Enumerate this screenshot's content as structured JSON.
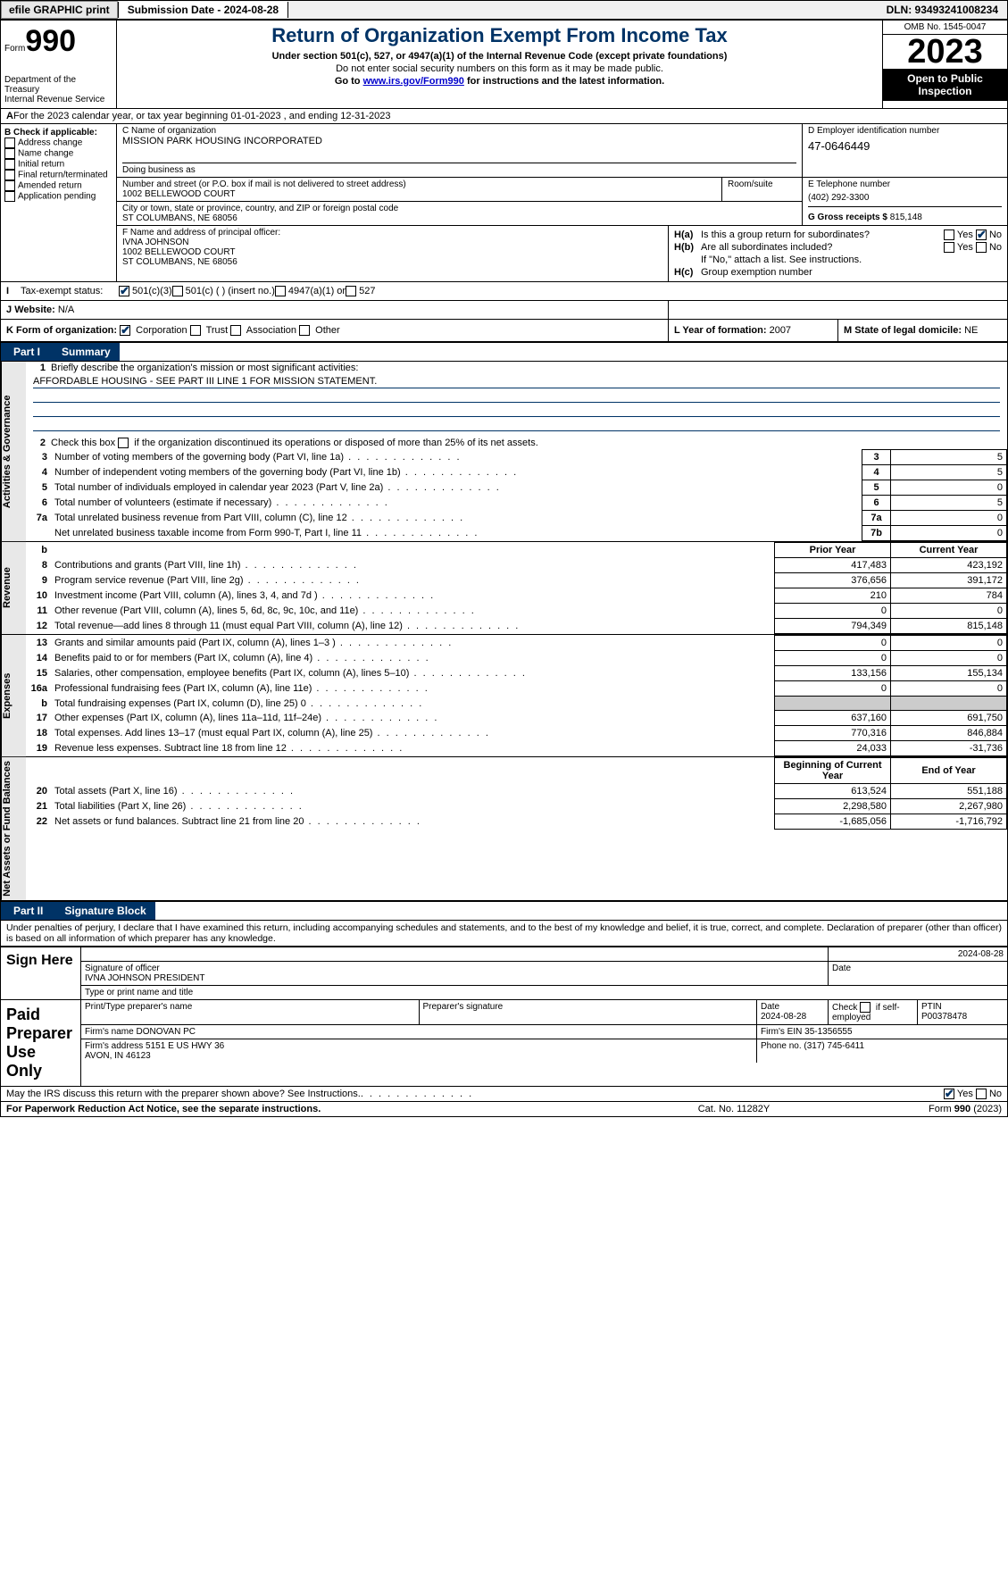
{
  "topbar": {
    "efile": "efile GRAPHIC print",
    "submission": "Submission Date - 2024-08-28",
    "dln": "DLN: 93493241008234"
  },
  "hdr": {
    "form_word": "Form",
    "form_num": "990",
    "dept": "Department of the Treasury\nInternal Revenue Service",
    "title": "Return of Organization Exempt From Income Tax",
    "sub": "Under section 501(c), 527, or 4947(a)(1) of the Internal Revenue Code (except private foundations)",
    "sub2": "Do not enter social security numbers on this form as it may be made public.",
    "sub3_a": "Go to ",
    "sub3_link": "www.irs.gov/Form990",
    "sub3_b": " for instructions and the latest information.",
    "omb": "OMB No. 1545-0047",
    "year": "2023",
    "insp": "Open to Public Inspection"
  },
  "a": {
    "text": "For the 2023 calendar year, or tax year beginning 01-01-2023     , and ending 12-31-2023"
  },
  "b": {
    "label": "B Check if applicable:",
    "items": [
      "Address change",
      "Name change",
      "Initial return",
      "Final return/terminated",
      "Amended return",
      "Application pending"
    ]
  },
  "c": {
    "name_label": "C Name of organization",
    "name": "MISSION PARK HOUSING INCORPORATED",
    "dba_label": "Doing business as",
    "dba": "",
    "street_label": "Number and street (or P.O. box if mail is not delivered to street address)",
    "street": "1002 BELLEWOOD COURT",
    "room_label": "Room/suite",
    "city_label": "City or town, state or province, country, and ZIP or foreign postal code",
    "city": "ST COLUMBANS, NE  68056"
  },
  "d": {
    "label": "D Employer identification number",
    "value": "47-0646449"
  },
  "e": {
    "label": "E Telephone number",
    "value": "(402) 292-3300"
  },
  "g": {
    "label": "G Gross receipts $",
    "value": "815,148"
  },
  "f": {
    "label": "F  Name and address of principal officer:",
    "name": "IVNA JOHNSON",
    "street": "1002 BELLEWOOD COURT",
    "city": "ST COLUMBANS, NE  68056"
  },
  "h": {
    "a_label": "Is this a group return for subordinates?",
    "a_yes": false,
    "a_no": true,
    "b_label": "Are all subordinates included?",
    "b_yes": false,
    "b_no": false,
    "b_note": "If \"No,\" attach a list. See instructions.",
    "c_label": "Group exemption number",
    "c_value": ""
  },
  "i": {
    "label": "Tax-exempt status:",
    "c501c3": true,
    "c501c": "501(c) (  ) (insert no.)",
    "c4947": "4947(a)(1) or",
    "c527": "527"
  },
  "j": {
    "label": "Website:",
    "value": "N/A"
  },
  "k": {
    "label": "K Form of organization:",
    "corp": true,
    "items": [
      "Corporation",
      "Trust",
      "Association",
      "Other"
    ]
  },
  "l": {
    "label": "L Year of formation:",
    "value": "2007"
  },
  "m": {
    "label": "M State of legal domicile:",
    "value": "NE"
  },
  "part1": {
    "num": "Part I",
    "title": "Summary"
  },
  "p1": {
    "l1": "Briefly describe the organization's mission or most significant activities:",
    "l1v": "AFFORDABLE HOUSING - SEE PART III LINE 1 FOR MISSION STATEMENT.",
    "l2": "Check this box      if the organization discontinued its operations or disposed of more than 25% of its net assets.",
    "rows": [
      {
        "n": "3",
        "t": "Number of voting members of the governing body (Part VI, line 1a)",
        "b": "3",
        "v": "5"
      },
      {
        "n": "4",
        "t": "Number of independent voting members of the governing body (Part VI, line 1b)",
        "b": "4",
        "v": "5"
      },
      {
        "n": "5",
        "t": "Total number of individuals employed in calendar year 2023 (Part V, line 2a)",
        "b": "5",
        "v": "0"
      },
      {
        "n": "6",
        "t": "Total number of volunteers (estimate if necessary)",
        "b": "6",
        "v": "5"
      },
      {
        "n": "7a",
        "t": "Total unrelated business revenue from Part VIII, column (C), line 12",
        "b": "7a",
        "v": "0"
      },
      {
        "n": "",
        "t": "Net unrelated business taxable income from Form 990-T, Part I, line 11",
        "b": "7b",
        "v": "0"
      }
    ]
  },
  "revexp": {
    "hdr_prior": "Prior Year",
    "hdr_curr": "Current Year",
    "rev": [
      {
        "n": "8",
        "t": "Contributions and grants (Part VIII, line 1h)",
        "p": "417,483",
        "c": "423,192"
      },
      {
        "n": "9",
        "t": "Program service revenue (Part VIII, line 2g)",
        "p": "376,656",
        "c": "391,172"
      },
      {
        "n": "10",
        "t": "Investment income (Part VIII, column (A), lines 3, 4, and 7d )",
        "p": "210",
        "c": "784"
      },
      {
        "n": "11",
        "t": "Other revenue (Part VIII, column (A), lines 5, 6d, 8c, 9c, 10c, and 11e)",
        "p": "0",
        "c": "0"
      },
      {
        "n": "12",
        "t": "Total revenue—add lines 8 through 11 (must equal Part VIII, column (A), line 12)",
        "p": "794,349",
        "c": "815,148"
      }
    ],
    "exp": [
      {
        "n": "13",
        "t": "Grants and similar amounts paid (Part IX, column (A), lines 1–3 )",
        "p": "0",
        "c": "0"
      },
      {
        "n": "14",
        "t": "Benefits paid to or for members (Part IX, column (A), line 4)",
        "p": "0",
        "c": "0"
      },
      {
        "n": "15",
        "t": "Salaries, other compensation, employee benefits (Part IX, column (A), lines 5–10)",
        "p": "133,156",
        "c": "155,134"
      },
      {
        "n": "16a",
        "t": "Professional fundraising fees (Part IX, column (A), line 11e)",
        "p": "0",
        "c": "0"
      },
      {
        "n": "b",
        "t": "Total fundraising expenses (Part IX, column (D), line 25) 0",
        "p": "",
        "c": "",
        "shade": true
      },
      {
        "n": "17",
        "t": "Other expenses (Part IX, column (A), lines 11a–11d, 11f–24e)",
        "p": "637,160",
        "c": "691,750"
      },
      {
        "n": "18",
        "t": "Total expenses. Add lines 13–17 (must equal Part IX, column (A), line 25)",
        "p": "770,316",
        "c": "846,884"
      },
      {
        "n": "19",
        "t": "Revenue less expenses. Subtract line 18 from line 12",
        "p": "24,033",
        "c": "-31,736"
      }
    ],
    "hdr_beg": "Beginning of Current Year",
    "hdr_end": "End of Year",
    "net": [
      {
        "n": "20",
        "t": "Total assets (Part X, line 16)",
        "p": "613,524",
        "c": "551,188"
      },
      {
        "n": "21",
        "t": "Total liabilities (Part X, line 26)",
        "p": "2,298,580",
        "c": "2,267,980"
      },
      {
        "n": "22",
        "t": "Net assets or fund balances. Subtract line 21 from line 20",
        "p": "-1,685,056",
        "c": "-1,716,792"
      }
    ]
  },
  "sides": {
    "gov": "Activities & Governance",
    "rev": "Revenue",
    "exp": "Expenses",
    "net": "Net Assets or Fund Balances"
  },
  "part2": {
    "num": "Part II",
    "title": "Signature Block"
  },
  "p2txt": "Under penalties of perjury, I declare that I have examined this return, including accompanying schedules and statements, and to the best of my knowledge and belief, it is true, correct, and complete. Declaration of preparer (other than officer) is based on all information of which preparer has any knowledge.",
  "sign": {
    "here": "Sign Here",
    "sig_label": "Signature of officer",
    "date_label": "Date",
    "date": "2024-08-28",
    "name_label": "Type or print name and title",
    "name": "IVNA JOHNSON  PRESIDENT"
  },
  "prep": {
    "label": "Paid Preparer Use Only",
    "h1": "Print/Type preparer's name",
    "h2": "Preparer's signature",
    "h3": "Date",
    "h3v": "2024-08-28",
    "h4": "Check       if self-employed",
    "h5": "PTIN",
    "h5v": "P00378478",
    "firm_label": "Firm's name",
    "firm": "DONOVAN PC",
    "ein_label": "Firm's EIN",
    "ein": "35-1356555",
    "addr_label": "Firm's address",
    "addr1": "5151 E US HWY 36",
    "addr2": "AVON, IN  46123",
    "phone_label": "Phone no.",
    "phone": "(317) 745-6411"
  },
  "discuss": {
    "text": "May the IRS discuss this return with the preparer shown above? See Instructions.",
    "yes": true,
    "no": false
  },
  "foot": {
    "l": "For Paperwork Reduction Act Notice, see the separate instructions.",
    "c": "Cat. No. 11282Y",
    "r": "Form 990 (2023)"
  }
}
